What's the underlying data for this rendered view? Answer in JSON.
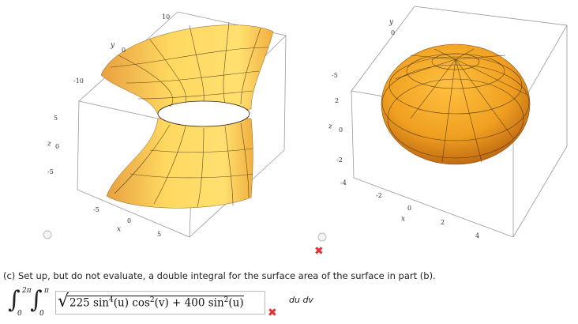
{
  "plots": [
    {
      "axis_labels": {
        "x": "x",
        "y": "y",
        "z": "z"
      },
      "x_ticks": [
        "-5",
        "0",
        "5"
      ],
      "y_ticks": [
        "10",
        "0",
        "-10"
      ],
      "z_ticks": [
        "5",
        "0",
        "-5"
      ]
    },
    {
      "axis_labels": {
        "x": "x",
        "y": "y",
        "z": "z"
      },
      "x_ticks": [
        "-2",
        "0",
        "2",
        "4"
      ],
      "y_ticks": [
        "0",
        "-5"
      ],
      "z_ticks": [
        "2",
        "0",
        "-2",
        "-4"
      ]
    }
  ],
  "question": "(c) Set up, but do not evaluate, a double integral for the surface area of the surface in part (b).",
  "answer": {
    "outer_upper": "2π",
    "outer_lower": "0",
    "inner_upper": "π",
    "inner_lower": "0",
    "integrand": [
      "225 sin",
      "4",
      "(u) cos",
      "2",
      "(v) + 400 sin",
      "2",
      "(u)"
    ],
    "differentials": "du dv"
  }
}
